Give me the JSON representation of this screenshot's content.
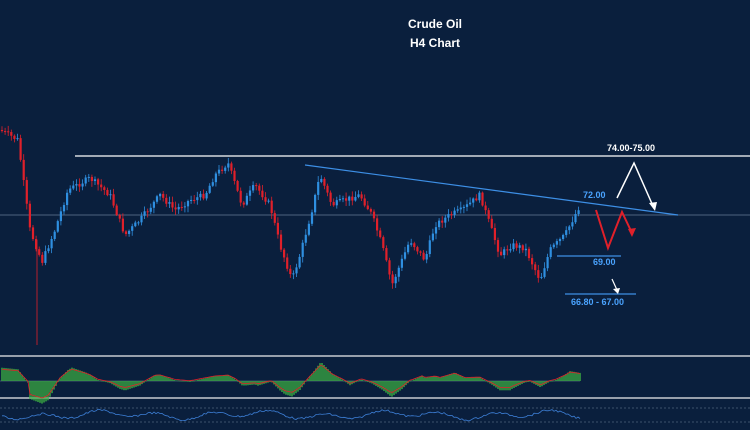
{
  "chart_data": {
    "type": "candlestick",
    "title": "Crude Oil",
    "subtitle": "H4 Chart",
    "annotations": {
      "resistance_label": "74.00-75.00",
      "trendline_label": "72.00",
      "support1_label": "69.00",
      "support2_label": "66.80 - 67.00"
    },
    "colors": {
      "background": "#0a1f3d",
      "bull": "#2f8fe0",
      "bear": "#e0202a",
      "resistance": "#ffffff",
      "trendline": "#3d8fe6",
      "label_blue": "#4aa3ff",
      "path_red": "#e0202a",
      "path_white": "#ffffff",
      "histogram": "#3cb043",
      "signal": "#e0202a",
      "oscillator": "#3d7fd6",
      "separator": "#c8ccd2"
    }
  }
}
